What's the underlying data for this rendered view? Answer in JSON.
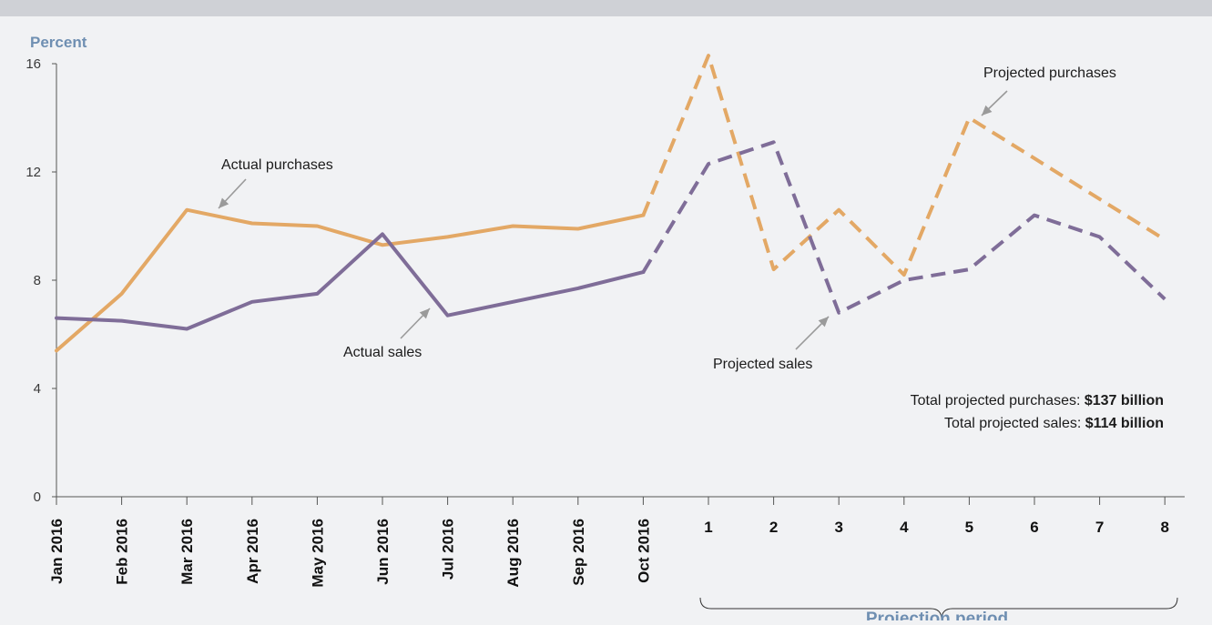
{
  "chart_data": {
    "type": "line",
    "ylabel": "Percent",
    "ylim": [
      0,
      16
    ],
    "y_ticks": [
      "0",
      "4",
      "8",
      "12",
      "16"
    ],
    "x_labels": [
      "Jan 2016",
      "Feb 2016",
      "Mar 2016",
      "Apr 2016",
      "May 2016",
      "Jun 2016",
      "Jul 2016",
      "Aug 2016",
      "Sep 2016",
      "Oct 2016",
      "1",
      "2",
      "3",
      "4",
      "5",
      "6",
      "7",
      "8"
    ],
    "actual_count": 10,
    "projection_label": "Projection period",
    "grid": false,
    "series": [
      {
        "name": "Actual purchases",
        "color": "#e3a865",
        "style": "solid",
        "values": [
          5.4,
          7.5,
          10.6,
          10.1,
          10.0,
          9.3,
          9.6,
          10.0,
          9.9,
          10.4,
          null,
          null,
          null,
          null,
          null,
          null,
          null,
          null
        ]
      },
      {
        "name": "Projected purchases",
        "color": "#e3a865",
        "style": "dashed",
        "values": [
          null,
          null,
          null,
          null,
          null,
          null,
          null,
          null,
          null,
          10.4,
          16.3,
          8.4,
          10.6,
          8.2,
          14.0,
          12.5,
          11.0,
          9.5
        ]
      },
      {
        "name": "Actual sales",
        "color": "#7f6d98",
        "style": "solid",
        "values": [
          6.6,
          6.5,
          6.2,
          7.2,
          7.5,
          9.7,
          6.7,
          7.2,
          7.7,
          8.3,
          null,
          null,
          null,
          null,
          null,
          null,
          null,
          null
        ]
      },
      {
        "name": "Projected sales",
        "color": "#7f6d98",
        "style": "dashed",
        "values": [
          null,
          null,
          null,
          null,
          null,
          null,
          null,
          null,
          null,
          8.3,
          12.3,
          13.1,
          6.8,
          8.0,
          8.4,
          10.4,
          9.6,
          7.3
        ]
      }
    ],
    "annotations": {
      "actual_purchases": "Actual purchases",
      "actual_sales": "Actual sales",
      "projected_sales": "Projected sales",
      "projected_purchases": "Projected purchases"
    },
    "totals": {
      "purchases_label": "Total projected purchases: ",
      "purchases_value": "$137 billion",
      "sales_label": "Total projected sales: ",
      "sales_value": "$114 billion"
    }
  }
}
